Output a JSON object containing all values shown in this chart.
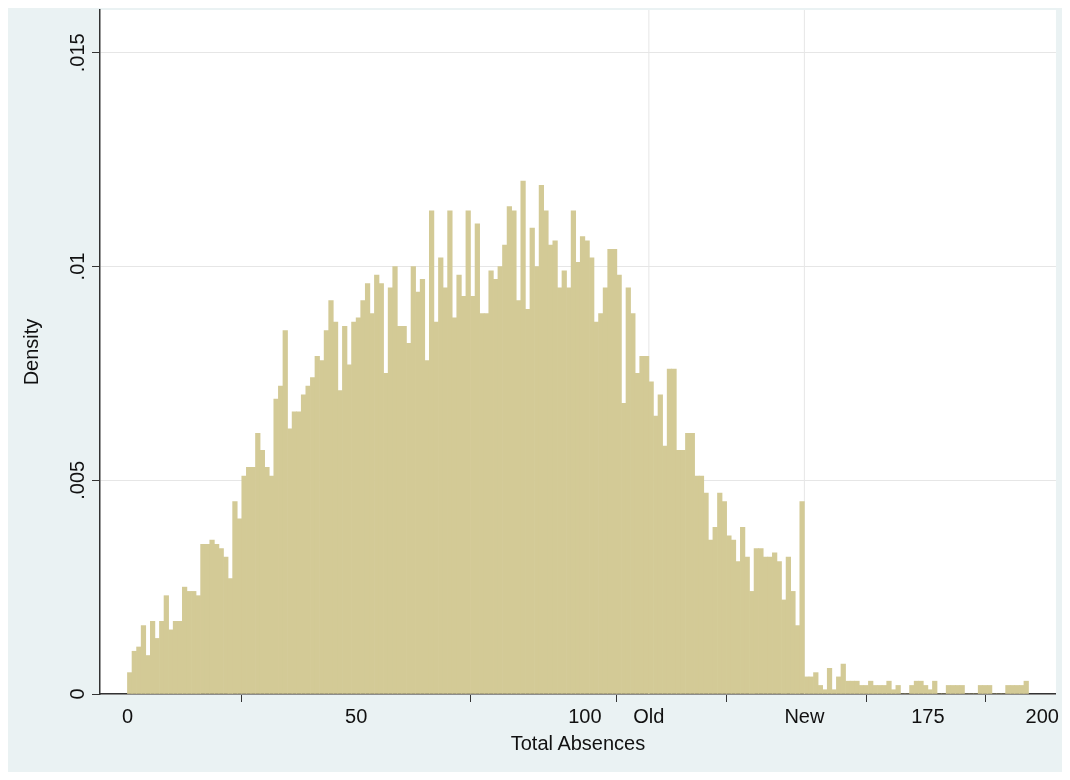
{
  "chart_data": {
    "type": "histogram",
    "xlabel": "Total Absences",
    "ylabel": "Density",
    "bins": [
      0,
      1,
      2,
      3,
      4,
      5,
      6,
      7,
      8,
      9,
      10,
      11,
      12,
      13,
      14,
      15,
      16,
      17,
      18,
      19,
      20,
      21,
      22,
      23,
      24,
      25,
      26,
      27,
      28,
      29,
      30,
      31,
      32,
      33,
      34,
      35,
      36,
      37,
      38,
      39,
      40,
      41,
      42,
      43,
      44,
      45,
      46,
      47,
      48,
      49,
      50,
      51,
      52,
      53,
      54,
      55,
      56,
      57,
      58,
      59,
      60,
      61,
      62,
      63,
      64,
      65,
      66,
      67,
      68,
      69,
      70,
      71,
      72,
      73,
      74,
      75,
      76,
      77,
      78,
      79,
      80,
      81,
      82,
      83,
      84,
      85,
      86,
      87,
      88,
      89,
      90,
      91,
      92,
      93,
      94,
      95,
      96,
      97,
      98,
      99,
      100,
      101,
      102,
      103,
      104,
      105,
      106,
      107,
      108,
      109,
      110,
      111,
      112,
      113,
      114,
      115,
      116,
      117,
      118,
      119,
      120,
      121,
      122,
      123,
      124,
      125,
      126,
      127,
      128,
      129,
      130,
      131,
      132,
      133,
      134,
      135,
      136,
      137,
      138,
      139,
      140,
      141,
      142,
      143,
      144,
      145,
      146,
      147,
      148,
      149,
      150,
      151,
      152,
      153,
      154,
      155,
      156,
      157,
      158,
      159,
      160,
      161,
      162,
      163,
      164,
      165,
      166,
      167,
      168,
      169,
      170,
      171,
      172,
      173,
      174,
      175,
      176,
      177,
      178,
      179,
      180,
      181,
      182,
      183,
      184,
      185,
      186,
      187,
      188,
      189,
      190,
      191,
      192,
      193,
      194,
      195,
      196,
      197
    ],
    "values": [
      0.0005,
      0.001,
      0.0011,
      0.0016,
      0.0009,
      0.0017,
      0.0013,
      0.0017,
      0.0023,
      0.0015,
      0.0017,
      0.0017,
      0.0025,
      0.0024,
      0.0024,
      0.0023,
      0.0035,
      0.0035,
      0.0036,
      0.0035,
      0.0034,
      0.0032,
      0.0027,
      0.0045,
      0.0041,
      0.0051,
      0.0053,
      0.0053,
      0.0061,
      0.0057,
      0.0053,
      0.0051,
      0.0069,
      0.0072,
      0.0085,
      0.0062,
      0.0066,
      0.0066,
      0.007,
      0.0072,
      0.0074,
      0.0079,
      0.0078,
      0.0085,
      0.0092,
      0.0087,
      0.0071,
      0.0086,
      0.0077,
      0.0087,
      0.0088,
      0.0092,
      0.0096,
      0.0089,
      0.0098,
      0.0096,
      0.0075,
      0.0095,
      0.01,
      0.0086,
      0.0086,
      0.0082,
      0.01,
      0.0094,
      0.0097,
      0.0078,
      0.0113,
      0.0087,
      0.0102,
      0.0095,
      0.0113,
      0.0088,
      0.0098,
      0.0093,
      0.0113,
      0.0093,
      0.011,
      0.0089,
      0.0089,
      0.0099,
      0.0097,
      0.01,
      0.0105,
      0.0114,
      0.0113,
      0.0092,
      0.012,
      0.009,
      0.0109,
      0.01,
      0.0119,
      0.0113,
      0.0105,
      0.0106,
      0.0095,
      0.0099,
      0.0095,
      0.0113,
      0.0101,
      0.0107,
      0.0106,
      0.0102,
      0.0087,
      0.0089,
      0.0095,
      0.0104,
      0.0104,
      0.0098,
      0.0068,
      0.0095,
      0.0089,
      0.0075,
      0.0079,
      0.0079,
      0.0073,
      0.0065,
      0.007,
      0.0058,
      0.0076,
      0.0076,
      0.0057,
      0.0057,
      0.0061,
      0.0061,
      0.0051,
      0.0051,
      0.0047,
      0.0036,
      0.0039,
      0.0047,
      0.0045,
      0.0037,
      0.0036,
      0.0031,
      0.0039,
      0.0032,
      0.0024,
      0.0034,
      0.0034,
      0.0032,
      0.0032,
      0.0033,
      0.0031,
      0.0022,
      0.0032,
      0.0024,
      0.0016,
      0.0045,
      0.0004,
      0.0004,
      0.0005,
      0.0002,
      0.0001,
      0.0006,
      0.0001,
      0.0004,
      0.0007,
      0.0003,
      0.0003,
      0.0003,
      0.0002,
      0.0002,
      0.0003,
      0.0002,
      0.0002,
      0.0002,
      0.0003,
      0.0001,
      0.0002,
      0,
      0,
      0.0002,
      0.0003,
      0.0003,
      0.0002,
      0.0001,
      0.0003,
      0,
      0,
      0.0002,
      0.0002,
      0.0002,
      0.0002,
      0,
      0,
      0,
      0.0002,
      0.0002,
      0.0002,
      0,
      0,
      0,
      0.0002,
      0.0002,
      0.0002,
      0.0002,
      0.0003
    ],
    "color": "#d3ca96",
    "xlim": [
      -6,
      203
    ],
    "xticks": [
      0,
      50,
      100,
      {
        "value": 114,
        "label": "Old"
      },
      {
        "value": 148,
        "label": "New"
      },
      175,
      200
    ],
    "ylim": [
      0,
      0.016
    ],
    "yticks": [
      0,
      {
        "value": 0.005,
        "label": ".005"
      },
      {
        "value": 0.01,
        "label": ".01"
      },
      {
        "value": 0.015,
        "label": ".015"
      }
    ],
    "grid": "y",
    "ref_lines": [
      {
        "axis": "x",
        "value": 114,
        "color": "#e6e6e6"
      },
      {
        "axis": "x",
        "value": 148,
        "color": "#e6e6e6"
      }
    ]
  }
}
